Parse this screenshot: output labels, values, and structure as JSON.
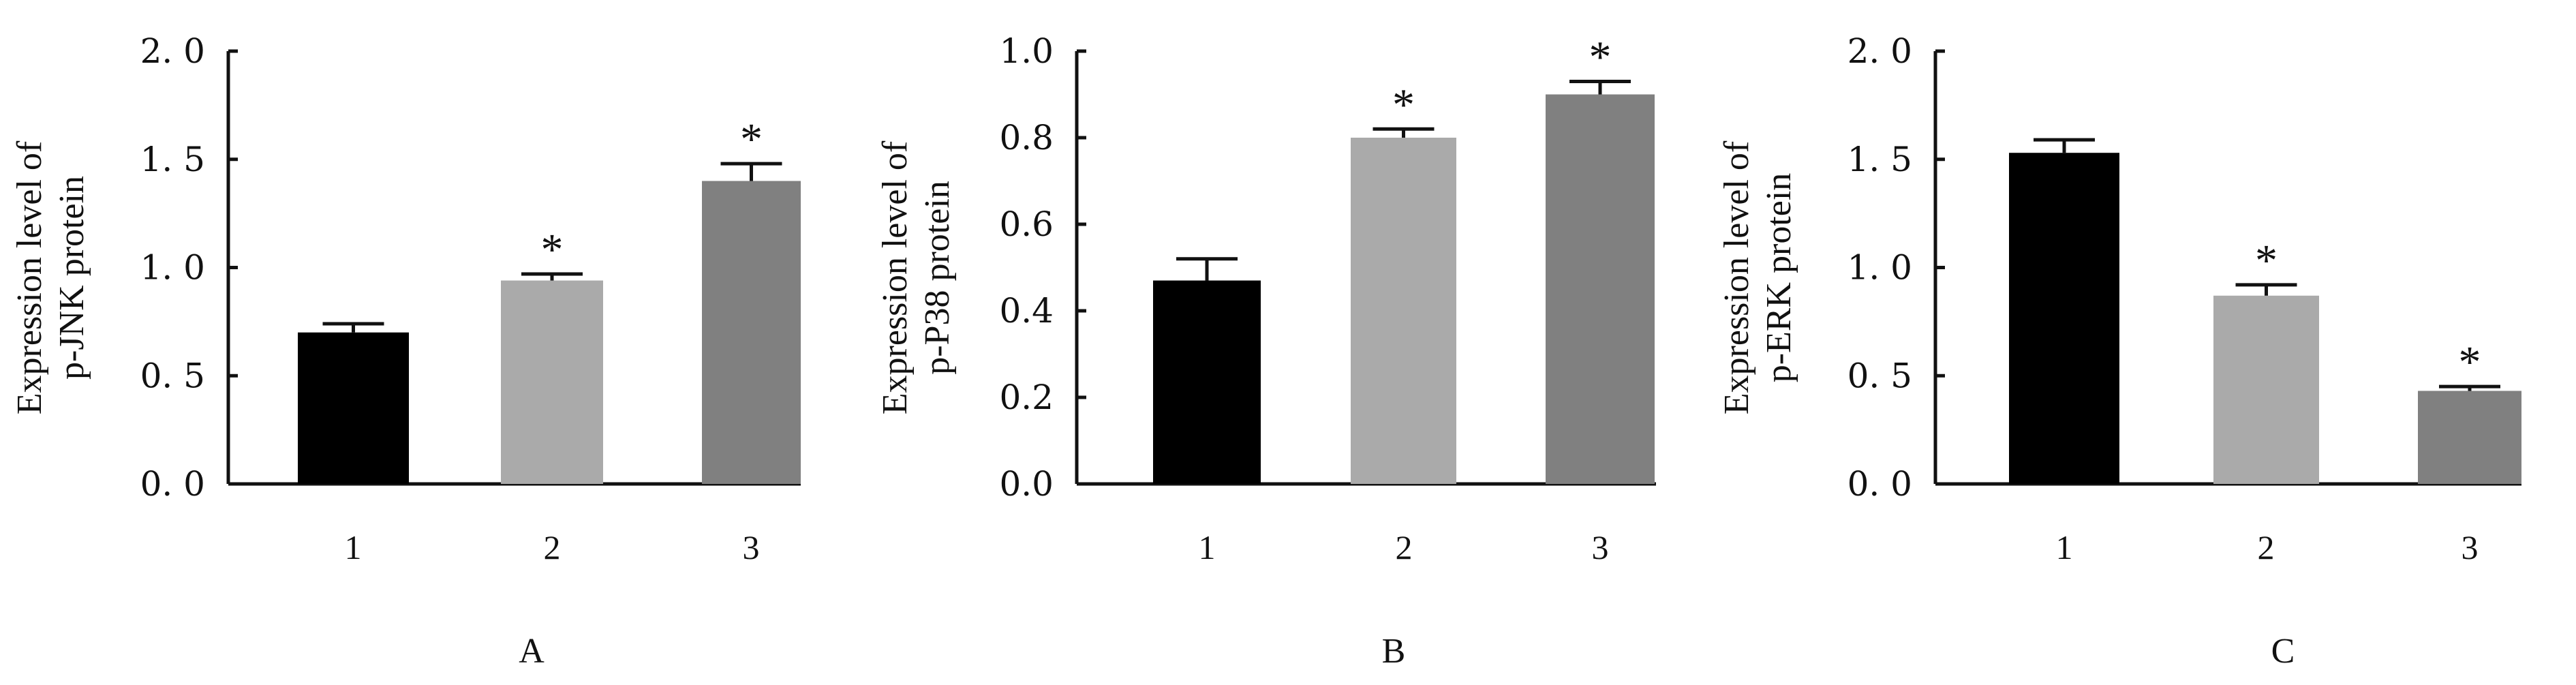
{
  "colors": [
    "#000000",
    "#aaaaaa",
    "#808080"
  ],
  "chart_data": [
    {
      "type": "bar",
      "panel": "A",
      "ylabel_lines": [
        "Expression level of",
        "p-JNK protein"
      ],
      "categories": [
        "1",
        "2",
        "3"
      ],
      "values": [
        0.7,
        0.94,
        1.4
      ],
      "errors": [
        0.04,
        0.03,
        0.08
      ],
      "significance": [
        "",
        "*",
        "*"
      ],
      "ylim": [
        0,
        2.0
      ],
      "yticks": [
        0,
        0.5,
        1.0,
        1.5,
        2.0
      ],
      "ytick_labels": [
        "0. 0",
        "0. 5",
        "1. 0",
        "1. 5",
        "2. 0"
      ]
    },
    {
      "type": "bar",
      "panel": "B",
      "ylabel_lines": [
        "Expression level of",
        "p-P38 protein"
      ],
      "categories": [
        "1",
        "2",
        "3"
      ],
      "values": [
        0.47,
        0.8,
        0.9
      ],
      "errors": [
        0.05,
        0.02,
        0.03
      ],
      "significance": [
        "",
        "*",
        "*"
      ],
      "ylim": [
        0,
        1.0
      ],
      "yticks": [
        0,
        0.2,
        0.4,
        0.6,
        0.8,
        1.0
      ],
      "ytick_labels": [
        "0.0",
        "0.2",
        "0.4",
        "0.6",
        "0.8",
        "1.0"
      ]
    },
    {
      "type": "bar",
      "panel": "C",
      "ylabel_lines": [
        "Expression level of",
        "p-ERK protein"
      ],
      "categories": [
        "1",
        "2",
        "3"
      ],
      "values": [
        1.53,
        0.87,
        0.43
      ],
      "errors": [
        0.06,
        0.05,
        0.02
      ],
      "significance": [
        "",
        "*",
        "*"
      ],
      "ylim": [
        0,
        2.0
      ],
      "yticks": [
        0,
        0.5,
        1.0,
        1.5,
        2.0
      ],
      "ytick_labels": [
        "0. 0",
        "0. 5",
        "1. 0",
        "1. 5",
        "2. 0"
      ]
    }
  ]
}
